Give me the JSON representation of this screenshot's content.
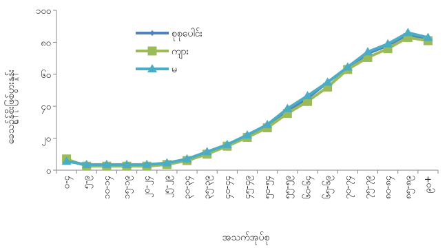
{
  "chart_data": {
    "type": "line",
    "xlabel": "အသက်အုပ်စု",
    "ylabel": "ခေသဉ်ွန်စိုးဖြစ်ပွားနှုန်း",
    "ylim": [
      0,
      100
    ],
    "yticks": [
      "၀",
      "၂၀",
      "၄၀",
      "၆၀",
      "၈၀",
      "၁၀၀"
    ],
    "categories": [
      "၀-၄",
      "၅-၉",
      "၁၀-၁၄",
      "၁၅-၁၉",
      "၂၀-၂၄",
      "၂၅-၂၉",
      "၃၀-၃၄",
      "၃၅-၃၉",
      "၄၀-၄၄",
      "၄၅-၄၉",
      "၅၀-၅၄",
      "၅၅-၅၉",
      "၆၀-၆၄",
      "၆၅-၆၉",
      "၇၀-၇၄",
      "၇၅-၇၉",
      "၈၀-၈၄",
      "၈၅-၈၉",
      "၉၀+"
    ],
    "legend_position": "upper-left",
    "series": [
      {
        "name": "စုစုပေါင်း",
        "color": "#4f81bd",
        "marker": "diamond",
        "values": [
          6,
          3,
          3,
          3,
          3,
          4,
          6.5,
          10.5,
          15.5,
          21.5,
          28,
          37.5,
          45,
          55,
          64,
          73,
          78,
          85,
          82
        ]
      },
      {
        "name": "ကျား",
        "color": "#9bbb59",
        "marker": "square",
        "values": [
          7,
          2.5,
          2.5,
          2.5,
          2.5,
          3.5,
          6,
          10,
          15,
          20.5,
          26.5,
          35.5,
          43,
          52,
          63,
          70.5,
          76,
          83,
          81
        ]
      },
      {
        "name": "မ",
        "color": "#4bacc6",
        "marker": "triangle",
        "values": [
          5.5,
          3.5,
          3.5,
          3.5,
          3.5,
          4.5,
          7,
          11.5,
          16,
          22,
          28.5,
          38.5,
          46.5,
          55,
          64.5,
          74,
          79,
          86,
          83
        ]
      }
    ]
  }
}
